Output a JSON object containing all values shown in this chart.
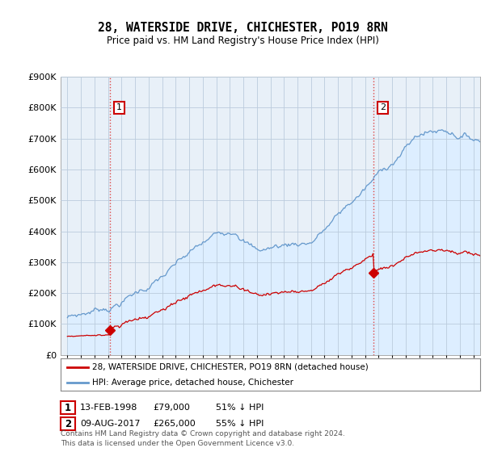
{
  "title": "28, WATERSIDE DRIVE, CHICHESTER, PO19 8RN",
  "subtitle": "Price paid vs. HM Land Registry's House Price Index (HPI)",
  "legend_line1": "28, WATERSIDE DRIVE, CHICHESTER, PO19 8RN (detached house)",
  "legend_line2": "HPI: Average price, detached house, Chichester",
  "sale1_date": 1998.12,
  "sale1_price": 79000,
  "sale1_label": "13-FEB-1998",
  "sale1_pct": "51% ↓ HPI",
  "sale2_date": 2017.61,
  "sale2_price": 265000,
  "sale2_label": "09-AUG-2017",
  "sale2_pct": "55% ↓ HPI",
  "footer": "Contains HM Land Registry data © Crown copyright and database right 2024.\nThis data is licensed under the Open Government Licence v3.0.",
  "red_color": "#cc0000",
  "blue_color": "#6699cc",
  "blue_fill": "#ddeeff",
  "plot_bg": "#e8f0f8",
  "background": "#ffffff",
  "grid_color": "#bbccdd",
  "ylim": [
    0,
    900000
  ],
  "xlim_start": 1994.5,
  "xlim_end": 2025.5
}
